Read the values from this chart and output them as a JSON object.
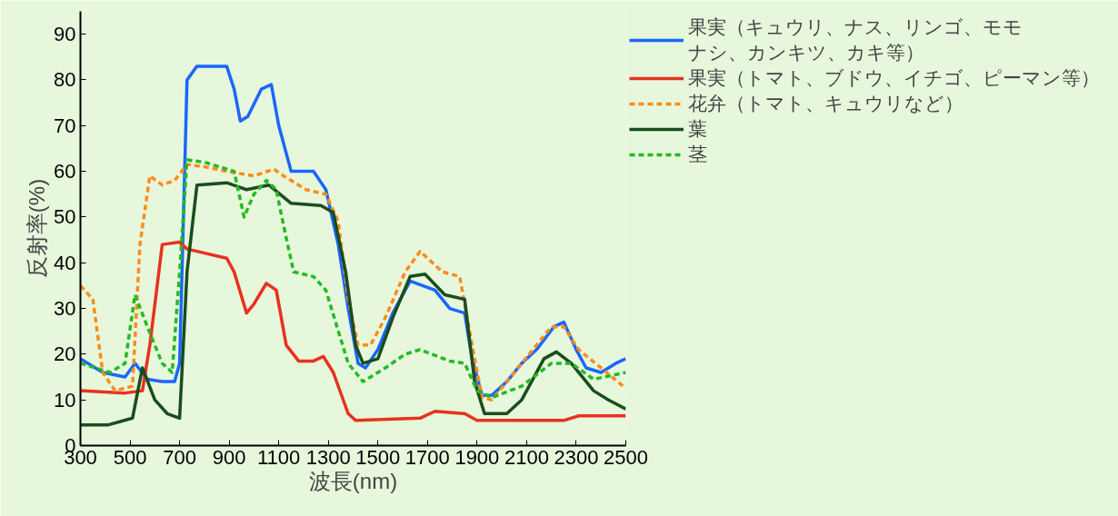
{
  "chart_data": {
    "type": "line",
    "xlabel": "波長(nm)",
    "ylabel": "反射率(%)",
    "xlim": [
      300,
      2500
    ],
    "ylim": [
      0,
      95
    ],
    "xticks": [
      300,
      500,
      700,
      900,
      1100,
      1300,
      1500,
      1700,
      1900,
      2100,
      2300,
      2500
    ],
    "yticks": [
      0,
      10,
      20,
      30,
      40,
      50,
      60,
      70,
      80,
      90
    ],
    "legend": "top right",
    "series": [
      {
        "name": "果実（キュウリ、ナス、リンゴ、モモナシ、カンキツ、カキ等）",
        "color": "#1a66ff",
        "line_style": "solid",
        "x": [
          300,
          390,
          480,
          520,
          570,
          630,
          680,
          700,
          730,
          770,
          890,
          920,
          945,
          975,
          1030,
          1070,
          1100,
          1150,
          1240,
          1290,
          1340,
          1380,
          1420,
          1450,
          1500,
          1560,
          1630,
          1730,
          1790,
          1850,
          1880,
          1920,
          1960,
          2020,
          2080,
          2140,
          2210,
          2250,
          2300,
          2340,
          2400,
          2460,
          2500
        ],
        "values": [
          19,
          16,
          15,
          18,
          14.5,
          14,
          14,
          18,
          80,
          83,
          83,
          78,
          71,
          72,
          78,
          79,
          70,
          60,
          60,
          56,
          44,
          30,
          18,
          17,
          21,
          29,
          36,
          34,
          30,
          29,
          19,
          11,
          11,
          14,
          18,
          21,
          26,
          27,
          21,
          17,
          16,
          18,
          19
        ]
      },
      {
        "name": "果実（トマト、ブドウ、イチゴ、ピーマン等）",
        "color": "#e8321e",
        "line_style": "solid",
        "x": [
          300,
          480,
          550,
          580,
          630,
          700,
          730,
          770,
          890,
          920,
          970,
          1000,
          1050,
          1090,
          1130,
          1180,
          1240,
          1280,
          1320,
          1380,
          1410,
          1670,
          1730,
          1850,
          1900,
          2250,
          2310,
          2500
        ],
        "values": [
          12,
          11.5,
          12,
          22,
          44,
          44.5,
          43,
          42.5,
          41,
          38,
          29,
          31,
          35.5,
          34,
          22,
          18.5,
          18.5,
          19.5,
          16,
          7,
          5.5,
          6,
          7.5,
          7,
          5.5,
          5.5,
          6.5,
          6.5
        ]
      },
      {
        "name": "花弁（トマト、キュウリなど）",
        "color": "#ff8c1a",
        "line_style": "dashed",
        "x": [
          300,
          350,
          390,
          440,
          510,
          540,
          580,
          630,
          680,
          730,
          800,
          890,
          1000,
          1080,
          1120,
          1210,
          1290,
          1340,
          1380,
          1420,
          1470,
          1530,
          1610,
          1670,
          1760,
          1830,
          1880,
          1920,
          1960,
          2080,
          2200,
          2250,
          2310,
          2400,
          2500
        ],
        "values": [
          35,
          32,
          16,
          12,
          13,
          44,
          59,
          57,
          58,
          61.5,
          61,
          60,
          59,
          60.5,
          59,
          56,
          55,
          49,
          32,
          22,
          22,
          28,
          38,
          42.5,
          38,
          37,
          22,
          10.5,
          10,
          18,
          26,
          26,
          21,
          17,
          12.5
        ]
      },
      {
        "name": "葉",
        "color": "#1a4d1a",
        "line_style": "solid",
        "x": [
          300,
          410,
          510,
          550,
          600,
          650,
          700,
          730,
          770,
          890,
          970,
          1060,
          1150,
          1270,
          1320,
          1370,
          1410,
          1440,
          1500,
          1560,
          1630,
          1690,
          1770,
          1850,
          1890,
          1930,
          2020,
          2080,
          2170,
          2220,
          2280,
          2370,
          2430,
          2500
        ],
        "values": [
          4.5,
          4.5,
          6,
          17,
          10,
          7,
          6,
          38,
          57,
          57.5,
          56,
          57,
          53,
          52.5,
          51,
          38,
          22,
          18,
          19,
          28,
          37,
          37.5,
          33,
          32,
          14,
          7,
          7,
          10,
          19,
          20.5,
          18,
          12,
          10,
          8
        ]
      },
      {
        "name": "茎",
        "color": "#22bb22",
        "line_style": "dashed",
        "x": [
          300,
          420,
          480,
          520,
          570,
          630,
          670,
          700,
          730,
          800,
          920,
          960,
          1000,
          1050,
          1090,
          1120,
          1160,
          1240,
          1290,
          1380,
          1440,
          1530,
          1610,
          1670,
          1790,
          1850,
          1900,
          1960,
          2080,
          2200,
          2280,
          2370,
          2500
        ],
        "values": [
          18,
          16,
          18,
          33,
          26,
          18,
          16,
          38,
          62.5,
          62,
          60,
          50,
          55,
          58,
          56,
          48,
          38,
          37,
          34,
          18,
          14,
          17,
          20,
          21,
          18.5,
          18,
          12,
          10.5,
          13,
          18,
          18,
          14.5,
          16
        ]
      }
    ]
  }
}
